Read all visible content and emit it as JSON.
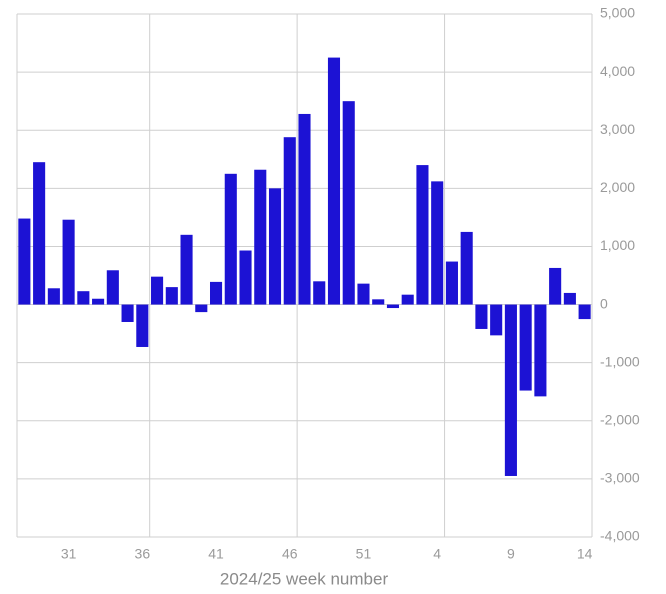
{
  "chart_data": {
    "type": "bar",
    "x_label": "2024/25 week number",
    "categories": [
      null,
      null,
      null,
      "31",
      null,
      null,
      null,
      null,
      "36",
      null,
      null,
      null,
      null,
      "41",
      null,
      null,
      null,
      null,
      "46",
      null,
      null,
      null,
      null,
      "51",
      null,
      null,
      null,
      null,
      "4",
      null,
      null,
      null,
      null,
      "9",
      null,
      null,
      null,
      null,
      "14"
    ],
    "values": [
      1480,
      2450,
      280,
      1460,
      230,
      100,
      590,
      -300,
      -730,
      480,
      300,
      1200,
      -130,
      390,
      2250,
      930,
      2320,
      2000,
      2880,
      3280,
      400,
      4250,
      3500,
      360,
      90,
      -60,
      170,
      2400,
      2120,
      740,
      1250,
      -420,
      -530,
      -2950,
      -1480,
      -1580,
      630,
      200,
      -250
    ],
    "color": "#1c12d4",
    "ylim": [
      -4000,
      5000
    ],
    "yticks": [
      {
        "value": -4000,
        "label": "-4,000"
      },
      {
        "value": -3000,
        "label": "-3,000"
      },
      {
        "value": -2000,
        "label": "-2,000"
      },
      {
        "value": -1000,
        "label": "-1,000"
      },
      0,
      {
        "value": 1000,
        "label": "1,000"
      },
      {
        "value": 2000,
        "label": "2,000"
      },
      {
        "value": 3000,
        "label": "3,000"
      },
      {
        "value": 4000,
        "label": "4,000"
      },
      {
        "value": 5000,
        "label": "5,000"
      }
    ],
    "grid": true,
    "y_axis_side": "right"
  }
}
